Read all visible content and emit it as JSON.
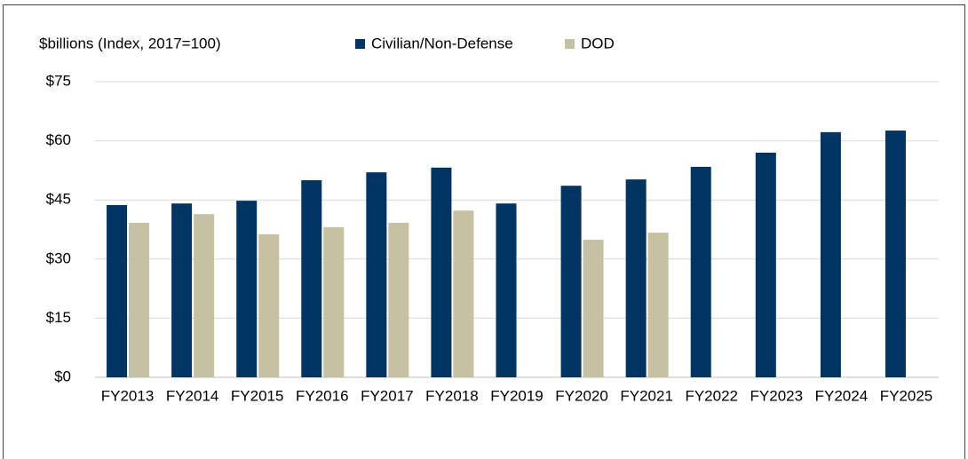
{
  "chart_data": {
    "type": "bar",
    "title": "$billions (Index, 2017=100)",
    "categories": [
      "FY2013",
      "FY2014",
      "FY2015",
      "FY2016",
      "FY2017",
      "FY2018",
      "FY2019",
      "FY2020",
      "FY2021",
      "FY2022",
      "FY2023",
      "FY2024",
      "FY2025"
    ],
    "series": [
      {
        "name": "Civilian/Non-Defense",
        "color": "#003462",
        "values": [
          43.7,
          44.1,
          44.8,
          50.0,
          52.0,
          53.2,
          44.1,
          48.6,
          50.2,
          53.4,
          57.0,
          62.2,
          62.6
        ]
      },
      {
        "name": "DOD",
        "color": "#c6c1a2",
        "values": [
          39.2,
          41.4,
          36.3,
          38.1,
          39.2,
          42.3,
          null,
          34.9,
          36.7,
          null,
          null,
          null,
          null
        ]
      }
    ],
    "ylim": [
      0,
      75
    ],
    "yticks": [
      {
        "value": 0,
        "label": "$0"
      },
      {
        "value": 15,
        "label": "$15"
      },
      {
        "value": 30,
        "label": "$30"
      },
      {
        "value": 45,
        "label": "$45"
      },
      {
        "value": 60,
        "label": "$60"
      },
      {
        "value": 75,
        "label": "$75"
      }
    ],
    "grid": true
  }
}
